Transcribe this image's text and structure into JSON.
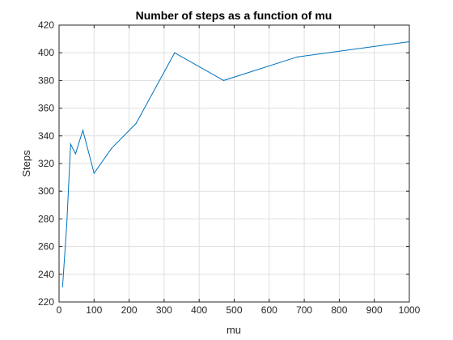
{
  "chart_data": {
    "type": "line",
    "title": "Number of steps as a function of mu",
    "xlabel": "mu",
    "ylabel": "Steps",
    "xlim": [
      0,
      1000
    ],
    "ylim": [
      220,
      420
    ],
    "xticks": [
      0,
      100,
      200,
      300,
      400,
      500,
      600,
      700,
      800,
      900,
      1000
    ],
    "yticks": [
      220,
      240,
      260,
      280,
      300,
      320,
      340,
      360,
      380,
      400,
      420
    ],
    "grid": true,
    "series": [
      {
        "color": "#0072BD",
        "x": [
          10,
          22,
          33,
          47,
          68,
          100,
          150,
          220,
          330,
          470,
          680,
          1000
        ],
        "y": [
          231,
          276,
          334,
          327,
          344,
          313,
          331,
          349,
          400,
          380,
          397,
          408
        ]
      }
    ]
  }
}
